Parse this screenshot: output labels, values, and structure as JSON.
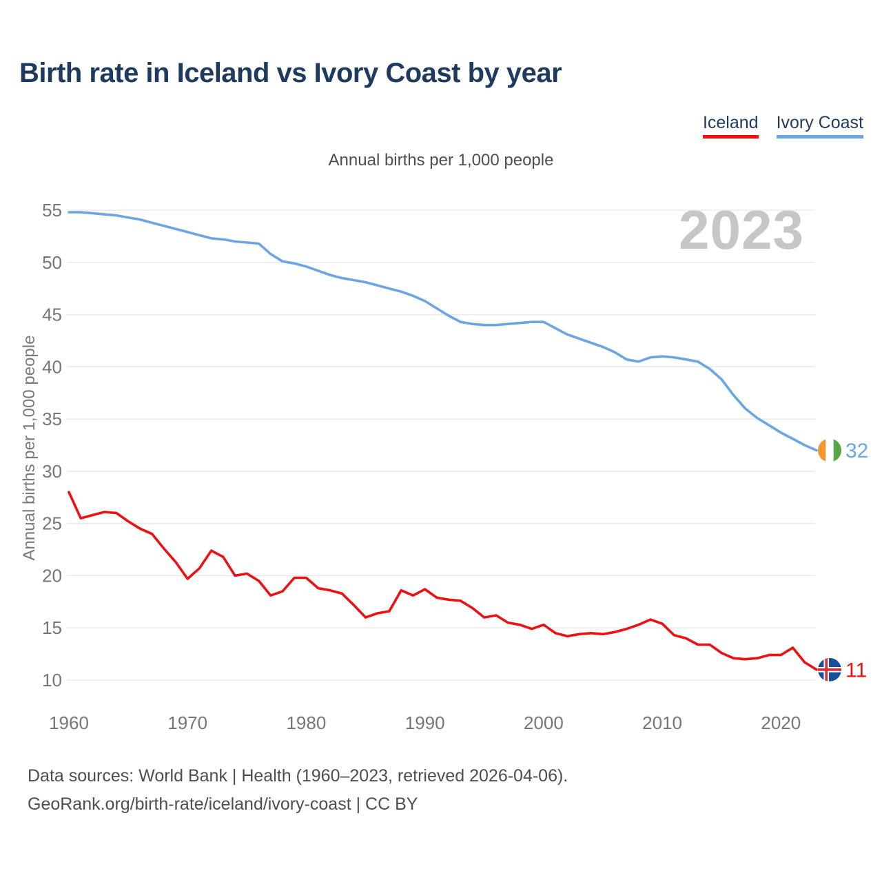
{
  "page": {
    "title": "Birth rate in Iceland vs Ivory Coast by year",
    "subtitle": "Annual births per 1,000 people",
    "watermark": "2023",
    "footer_line1": "Data sources: World Bank | Health (1960–2023, retrieved 2026-04-06).",
    "footer_line2": "GeoRank.org/birth-rate/iceland/ivory-coast | CC BY",
    "colors": {
      "brand_navy": "#1e3a5f",
      "watermark_gray": "#c6c6c6",
      "grid_gray": "#eaeaea",
      "tick_gray": "#767676"
    }
  },
  "legend": {
    "items": [
      {
        "label": "Iceland",
        "color": "#ee1111"
      },
      {
        "label": "Ivory Coast",
        "color": "#6ba5e4"
      }
    ]
  },
  "icons": {
    "iceland_flag": {
      "blue": "#15509e",
      "white": "#ffffff",
      "red": "#d6303a"
    },
    "ivory_coast_flag": {
      "orange": "#f5962e",
      "white": "#ffffff",
      "green": "#57a546"
    }
  },
  "chart_data": {
    "type": "line",
    "title": "Annual births per 1,000 people",
    "xlabel": "",
    "ylabel": "Annual births per 1,000 people",
    "xlim": [
      1960,
      2023
    ],
    "ylim": [
      10,
      55
    ],
    "grid": "horizontal",
    "legend_position": "top-right",
    "xticks": [
      1960,
      1970,
      1980,
      1990,
      2000,
      2010,
      2020
    ],
    "yticks": [
      10,
      15,
      20,
      25,
      30,
      35,
      40,
      45,
      50,
      55
    ],
    "x": [
      1960,
      1961,
      1962,
      1963,
      1964,
      1965,
      1966,
      1967,
      1968,
      1969,
      1970,
      1971,
      1972,
      1973,
      1974,
      1975,
      1976,
      1977,
      1978,
      1979,
      1980,
      1981,
      1982,
      1983,
      1984,
      1985,
      1986,
      1987,
      1988,
      1989,
      1990,
      1991,
      1992,
      1993,
      1994,
      1995,
      1996,
      1997,
      1998,
      1999,
      2000,
      2001,
      2002,
      2003,
      2004,
      2005,
      2006,
      2007,
      2008,
      2009,
      2010,
      2011,
      2012,
      2013,
      2014,
      2015,
      2016,
      2017,
      2018,
      2019,
      2020,
      2021,
      2022,
      2023
    ],
    "series": [
      {
        "name": "Iceland",
        "color": "#ee1111",
        "end_label": "11",
        "flag": "iceland",
        "values": [
          28.0,
          25.5,
          25.8,
          26.1,
          26.0,
          25.2,
          24.5,
          24.0,
          22.6,
          21.3,
          19.7,
          20.7,
          22.4,
          21.8,
          20.0,
          20.2,
          19.5,
          18.1,
          18.5,
          19.8,
          19.8,
          18.8,
          18.6,
          18.3,
          17.2,
          16.0,
          16.4,
          16.6,
          18.6,
          18.1,
          18.7,
          17.9,
          17.7,
          17.6,
          16.9,
          16.0,
          16.2,
          15.5,
          15.3,
          14.9,
          15.3,
          14.5,
          14.2,
          14.4,
          14.5,
          14.4,
          14.6,
          14.9,
          15.3,
          15.8,
          15.4,
          14.3,
          14.0,
          13.4,
          13.4,
          12.6,
          12.1,
          12.0,
          12.1,
          12.4,
          12.4,
          13.1,
          11.7,
          11.0
        ]
      },
      {
        "name": "Ivory Coast",
        "color": "#6ba5e4",
        "end_label": "32",
        "flag": "ivory-coast",
        "values": [
          54.8,
          54.8,
          54.7,
          54.6,
          54.5,
          54.3,
          54.1,
          53.8,
          53.5,
          53.2,
          52.9,
          52.6,
          52.3,
          52.2,
          52.0,
          51.9,
          51.8,
          50.8,
          50.1,
          49.9,
          49.6,
          49.2,
          48.8,
          48.5,
          48.3,
          48.1,
          47.8,
          47.5,
          47.2,
          46.8,
          46.3,
          45.6,
          44.9,
          44.3,
          44.1,
          44.0,
          44.0,
          44.1,
          44.2,
          44.3,
          44.3,
          43.7,
          43.1,
          42.7,
          42.3,
          41.9,
          41.4,
          40.7,
          40.5,
          40.9,
          41.0,
          40.9,
          40.7,
          40.5,
          39.8,
          38.8,
          37.3,
          36.0,
          35.1,
          34.4,
          33.7,
          33.1,
          32.5,
          32.0
        ]
      }
    ]
  }
}
